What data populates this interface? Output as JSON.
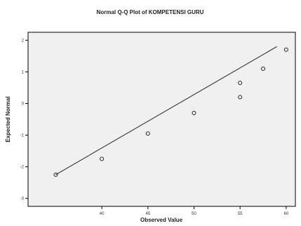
{
  "chart_data": {
    "type": "scatter",
    "title": "Normal Q-Q Plot of KOMPETENSI GURU",
    "xlabel": "Observed Value",
    "ylabel": "Expected Normal",
    "xlim": [
      32,
      61
    ],
    "ylim": [
      -3.25,
      2.25
    ],
    "x_ticks": [
      40,
      45,
      50,
      55,
      60
    ],
    "y_ticks": [
      -3,
      -2,
      -1,
      0,
      1,
      2
    ],
    "x_tick_labels": [
      "40",
      "45",
      "50",
      "55",
      "60"
    ],
    "y_tick_labels": [
      "-3",
      "-2",
      "-1",
      "0",
      "1",
      "2"
    ],
    "points": [
      {
        "x": 35.0,
        "y": -2.25
      },
      {
        "x": 40.0,
        "y": -1.75
      },
      {
        "x": 45.0,
        "y": -0.95
      },
      {
        "x": 50.0,
        "y": -0.3
      },
      {
        "x": 55.0,
        "y": 0.2
      },
      {
        "x": 55.0,
        "y": 0.65
      },
      {
        "x": 57.5,
        "y": 1.1
      },
      {
        "x": 60.0,
        "y": 1.7
      }
    ],
    "reference_line": {
      "x": [
        35,
        59
      ],
      "y": [
        -2.25,
        1.8
      ]
    },
    "grid": false,
    "legend": "none",
    "colors": {
      "plot_background": "#f0f0f0",
      "frame": "#000000",
      "marker": "#222222",
      "line": "#222222"
    }
  }
}
